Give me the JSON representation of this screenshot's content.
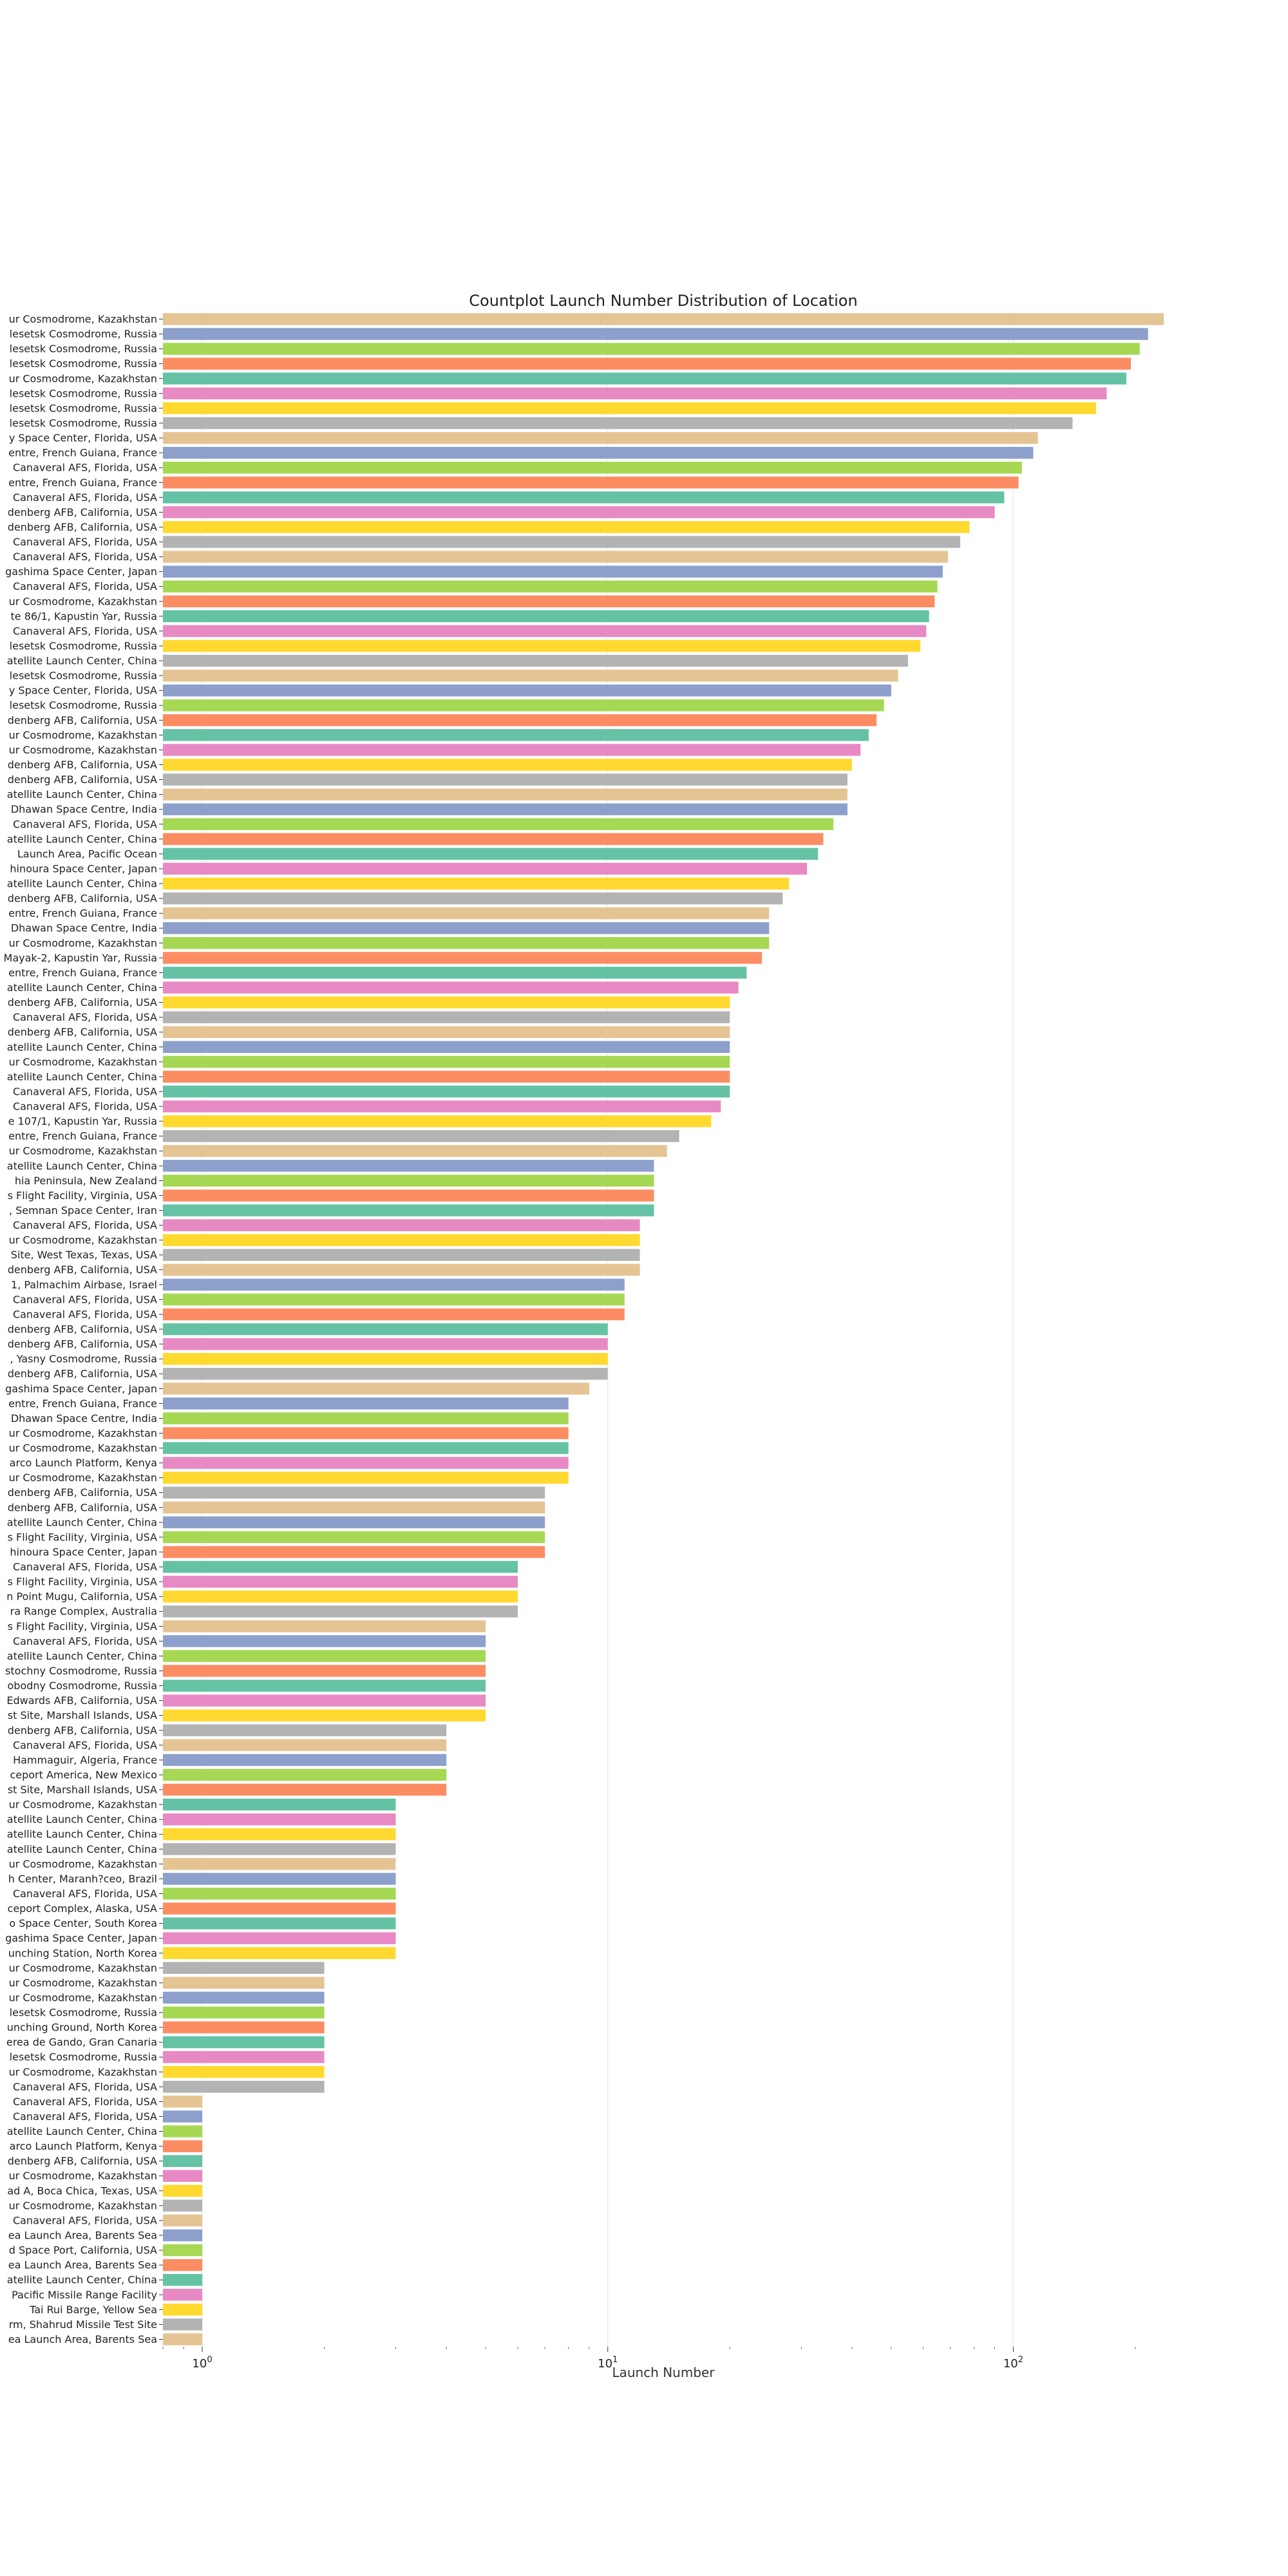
{
  "chart_data": {
    "type": "bar",
    "orientation": "horizontal",
    "title": "Countplot Launch Number Distribution of Location",
    "xlabel": "Launch Number",
    "ylabel": "",
    "xscale": "log",
    "xlim": [
      0.8,
      280
    ],
    "grid": "x-major",
    "xticks": [
      {
        "value": 1,
        "base": "10",
        "exp": "0"
      },
      {
        "value": 10,
        "base": "10",
        "exp": "1"
      },
      {
        "value": 100,
        "base": "10",
        "exp": "2"
      }
    ],
    "palette": [
      "#e5c494",
      "#8da0cb",
      "#a6d854",
      "#fc8d62",
      "#66c2a5",
      "#e78ac3",
      "#ffd92f",
      "#b3b3b3"
    ],
    "categories": [
      "ur Cosmodrome, Kazakhstan",
      "lesetsk Cosmodrome, Russia",
      "lesetsk Cosmodrome, Russia",
      "lesetsk Cosmodrome, Russia",
      "ur Cosmodrome, Kazakhstan",
      "lesetsk Cosmodrome, Russia",
      "lesetsk Cosmodrome, Russia",
      "lesetsk Cosmodrome, Russia",
      "y Space Center, Florida, USA",
      "entre, French Guiana, France",
      "Canaveral AFS, Florida, USA",
      "entre, French Guiana, France",
      "Canaveral AFS, Florida, USA",
      "denberg AFB, California, USA",
      "denberg AFB, California, USA",
      "Canaveral AFS, Florida, USA",
      "Canaveral AFS, Florida, USA",
      "gashima Space Center, Japan",
      "Canaveral AFS, Florida, USA",
      "ur Cosmodrome, Kazakhstan",
      "te 86/1, Kapustin Yar, Russia",
      "Canaveral AFS, Florida, USA",
      "lesetsk Cosmodrome, Russia",
      "atellite Launch Center, China",
      "lesetsk Cosmodrome, Russia",
      "y Space Center, Florida, USA",
      "lesetsk Cosmodrome, Russia",
      "denberg AFB, California, USA",
      "ur Cosmodrome, Kazakhstan",
      "ur Cosmodrome, Kazakhstan",
      "denberg AFB, California, USA",
      "denberg AFB, California, USA",
      "atellite Launch Center, China",
      "Dhawan Space Centre, India",
      "Canaveral AFS, Florida, USA",
      "atellite Launch Center, China",
      "Launch Area, Pacific Ocean",
      "hinoura Space Center, Japan",
      "atellite Launch Center, China",
      "denberg AFB, California, USA",
      "entre, French Guiana, France",
      "Dhawan Space Centre, India",
      "ur Cosmodrome, Kazakhstan",
      "Mayak-2, Kapustin Yar, Russia",
      "entre, French Guiana, France",
      "atellite Launch Center, China",
      "denberg AFB, California, USA",
      "Canaveral AFS, Florida, USA",
      "denberg AFB, California, USA",
      "atellite Launch Center, China",
      "ur Cosmodrome, Kazakhstan",
      "atellite Launch Center, China",
      "Canaveral AFS, Florida, USA",
      "Canaveral AFS, Florida, USA",
      "e 107/1, Kapustin Yar, Russia",
      "entre, French Guiana, France",
      "ur Cosmodrome, Kazakhstan",
      "atellite Launch Center, China",
      "hia Peninsula, New Zealand",
      "s Flight Facility, Virginia, USA",
      ", Semnan Space Center, Iran",
      "Canaveral AFS, Florida, USA",
      "ur Cosmodrome, Kazakhstan",
      "Site, West Texas, Texas, USA",
      "denberg AFB, California, USA",
      "1, Palmachim Airbase, Israel",
      "Canaveral AFS, Florida, USA",
      "Canaveral AFS, Florida, USA",
      "denberg AFB, California, USA",
      "denberg AFB, California, USA",
      ", Yasny Cosmodrome, Russia",
      "denberg AFB, California, USA",
      "gashima Space Center, Japan",
      "entre, French Guiana, France",
      "Dhawan Space Centre, India",
      "ur Cosmodrome, Kazakhstan",
      "ur Cosmodrome, Kazakhstan",
      "arco Launch Platform, Kenya",
      "ur Cosmodrome, Kazakhstan",
      "denberg AFB, California, USA",
      "denberg AFB, California, USA",
      "atellite Launch Center, China",
      "s Flight Facility, Virginia, USA",
      "hinoura Space Center, Japan",
      "Canaveral AFS, Florida, USA",
      "s Flight Facility, Virginia, USA",
      "n Point Mugu, California, USA",
      "ra Range Complex, Australia",
      "s Flight Facility, Virginia, USA",
      "Canaveral AFS, Florida, USA",
      "atellite Launch Center, China",
      "stochny Cosmodrome, Russia",
      "obodny Cosmodrome, Russia",
      "Edwards AFB, California, USA",
      "st Site, Marshall Islands, USA",
      "denberg AFB, California, USA",
      "Canaveral AFS, Florida, USA",
      "Hammaguir, Algeria, France",
      "ceport America, New Mexico",
      "st Site, Marshall Islands, USA",
      "ur Cosmodrome, Kazakhstan",
      "atellite Launch Center, China",
      "atellite Launch Center, China",
      "atellite Launch Center, China",
      "ur Cosmodrome, Kazakhstan",
      "h Center, Maranh?ceo, Brazil",
      "Canaveral AFS, Florida, USA",
      "ceport Complex, Alaska, USA",
      "o Space Center, South Korea",
      "gashima Space Center, Japan",
      "unching Station, North Korea",
      "ur Cosmodrome, Kazakhstan",
      "ur Cosmodrome, Kazakhstan",
      "ur Cosmodrome, Kazakhstan",
      "lesetsk Cosmodrome, Russia",
      "unching Ground, North Korea",
      "erea de Gando, Gran Canaria",
      "lesetsk Cosmodrome, Russia",
      "ur Cosmodrome, Kazakhstan",
      "Canaveral AFS, Florida, USA",
      "Canaveral AFS, Florida, USA",
      "Canaveral AFS, Florida, USA",
      "atellite Launch Center, China",
      "arco Launch Platform, Kenya",
      "denberg AFB, California, USA",
      "ur Cosmodrome, Kazakhstan",
      "ad A, Boca Chica, Texas, USA",
      "ur Cosmodrome, Kazakhstan",
      "Canaveral AFS, Florida, USA",
      "ea Launch Area, Barents Sea",
      "d Space Port, California, USA",
      "ea Launch Area, Barents Sea",
      "atellite Launch Center, China",
      "Pacific Missile Range Facility",
      "Tai Rui Barge, Yellow Sea",
      "rm, Shahrud Missile Test Site",
      "ea Launch Area, Barents Sea"
    ],
    "values": [
      235,
      215,
      205,
      195,
      190,
      170,
      160,
      140,
      115,
      112,
      105,
      103,
      95,
      90,
      78,
      74,
      69,
      67,
      65,
      64,
      62,
      61,
      59,
      55,
      52,
      50,
      48,
      46,
      44,
      42,
      40,
      39,
      39,
      39,
      36,
      34,
      33,
      31,
      28,
      27,
      25,
      25,
      25,
      24,
      22,
      21,
      20,
      20,
      20,
      20,
      20,
      20,
      20,
      19,
      18,
      15,
      14,
      13,
      13,
      13,
      13,
      12,
      12,
      12,
      12,
      11,
      11,
      11,
      10,
      10,
      10,
      10,
      9,
      8,
      8,
      8,
      8,
      8,
      8,
      7,
      7,
      7,
      7,
      7,
      6,
      6,
      6,
      6,
      5,
      5,
      5,
      5,
      5,
      5,
      5,
      4,
      4,
      4,
      4,
      4,
      3,
      3,
      3,
      3,
      3,
      3,
      3,
      3,
      3,
      3,
      3,
      2,
      2,
      2,
      2,
      2,
      2,
      2,
      2,
      2,
      1,
      1,
      1,
      1,
      1,
      1,
      1,
      1,
      1,
      1,
      1,
      1,
      1,
      1,
      1,
      1,
      1
    ]
  }
}
